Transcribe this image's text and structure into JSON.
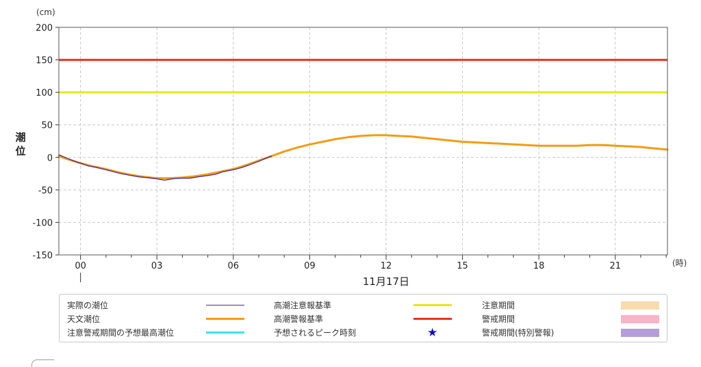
{
  "chart_data": {
    "type": "line",
    "unit_label": "(cm)",
    "ylabel": "潮位",
    "x_unit_label": "(時)",
    "date_label": "11月17日",
    "xlim": [
      -0.85,
      23.05
    ],
    "ylim": [
      -150,
      200
    ],
    "y_ticks": [
      200,
      150,
      100,
      50,
      0,
      -50,
      -100,
      -150
    ],
    "x_ticks": [
      "00",
      "03",
      "06",
      "09",
      "12",
      "15",
      "18",
      "21"
    ],
    "x_tick_values": [
      0,
      3,
      6,
      9,
      12,
      15,
      18,
      21
    ],
    "grid": true,
    "thresholds": [
      {
        "name": "高潮警報基準",
        "value": 150,
        "color": "#e8341c"
      },
      {
        "name": "高潮注意報基準",
        "value": 100,
        "color": "#e6e619"
      }
    ],
    "series": [
      {
        "name": "天文潮位",
        "color": "#f39c12",
        "x": [
          -0.85,
          -0.5,
          0,
          0.5,
          1,
          1.5,
          2,
          2.5,
          3,
          3.5,
          4,
          4.5,
          5,
          5.5,
          6,
          6.5,
          7,
          7.5,
          8,
          8.5,
          9,
          9.5,
          10,
          10.5,
          11,
          11.5,
          12,
          12.5,
          13,
          13.5,
          14,
          14.5,
          15,
          15.5,
          16,
          16.5,
          17,
          17.5,
          18,
          18.5,
          19,
          19.5,
          20,
          20.5,
          21,
          21.5,
          22,
          22.5,
          23.05
        ],
        "values": [
          2,
          -3,
          -9,
          -14,
          -18,
          -23,
          -27,
          -30,
          -32,
          -32,
          -31,
          -29,
          -26,
          -22,
          -18,
          -12,
          -5,
          2,
          9,
          15,
          20,
          24,
          28,
          31,
          33,
          34,
          34,
          33,
          32,
          30,
          28,
          26,
          24,
          23,
          22,
          21,
          20,
          19,
          18,
          18,
          18,
          18,
          19,
          19,
          18,
          17,
          16,
          14,
          12
        ]
      },
      {
        "name": "実際の潮位",
        "color": "#4b2a9a",
        "x": [
          -0.85,
          -0.6,
          -0.3,
          0,
          0.3,
          0.6,
          1,
          1.3,
          1.6,
          2,
          2.3,
          2.6,
          3,
          3.3,
          3.6,
          4,
          4.3,
          4.6,
          5,
          5.3,
          5.6,
          6,
          6.3,
          6.6,
          7,
          7.3,
          7.5
        ],
        "values": [
          4,
          0,
          -5,
          -9,
          -13,
          -15,
          -19,
          -22,
          -25,
          -28,
          -30,
          -31,
          -33,
          -35,
          -33,
          -32,
          -32,
          -30,
          -28,
          -26,
          -22,
          -19,
          -16,
          -12,
          -6,
          -1,
          2
        ]
      }
    ]
  },
  "legend": {
    "items": [
      {
        "label": "実際の潮位",
        "kind": "line",
        "color": "#4b2a9a",
        "thickness": 1
      },
      {
        "label": "天文潮位",
        "kind": "line",
        "color": "#f39c12",
        "thickness": 3
      },
      {
        "label": "注意警戒期間の予想最高潮位",
        "kind": "line",
        "color": "#33e6f0",
        "thickness": 3
      },
      {
        "label": "高潮注意報基準",
        "kind": "line",
        "color": "#e6e619",
        "thickness": 3
      },
      {
        "label": "高潮警報基準",
        "kind": "line",
        "color": "#e8341c",
        "thickness": 3
      },
      {
        "label": "予想されるピーク時刻",
        "kind": "star",
        "color": "#1010d0"
      },
      {
        "label": "注意期間",
        "kind": "rect",
        "color": "#f8dcae"
      },
      {
        "label": "警戒期間",
        "kind": "rect",
        "color": "#f9b3c8"
      },
      {
        "label": "警戒期間(特別警報)",
        "kind": "rect",
        "color": "#b39ddb"
      }
    ]
  }
}
